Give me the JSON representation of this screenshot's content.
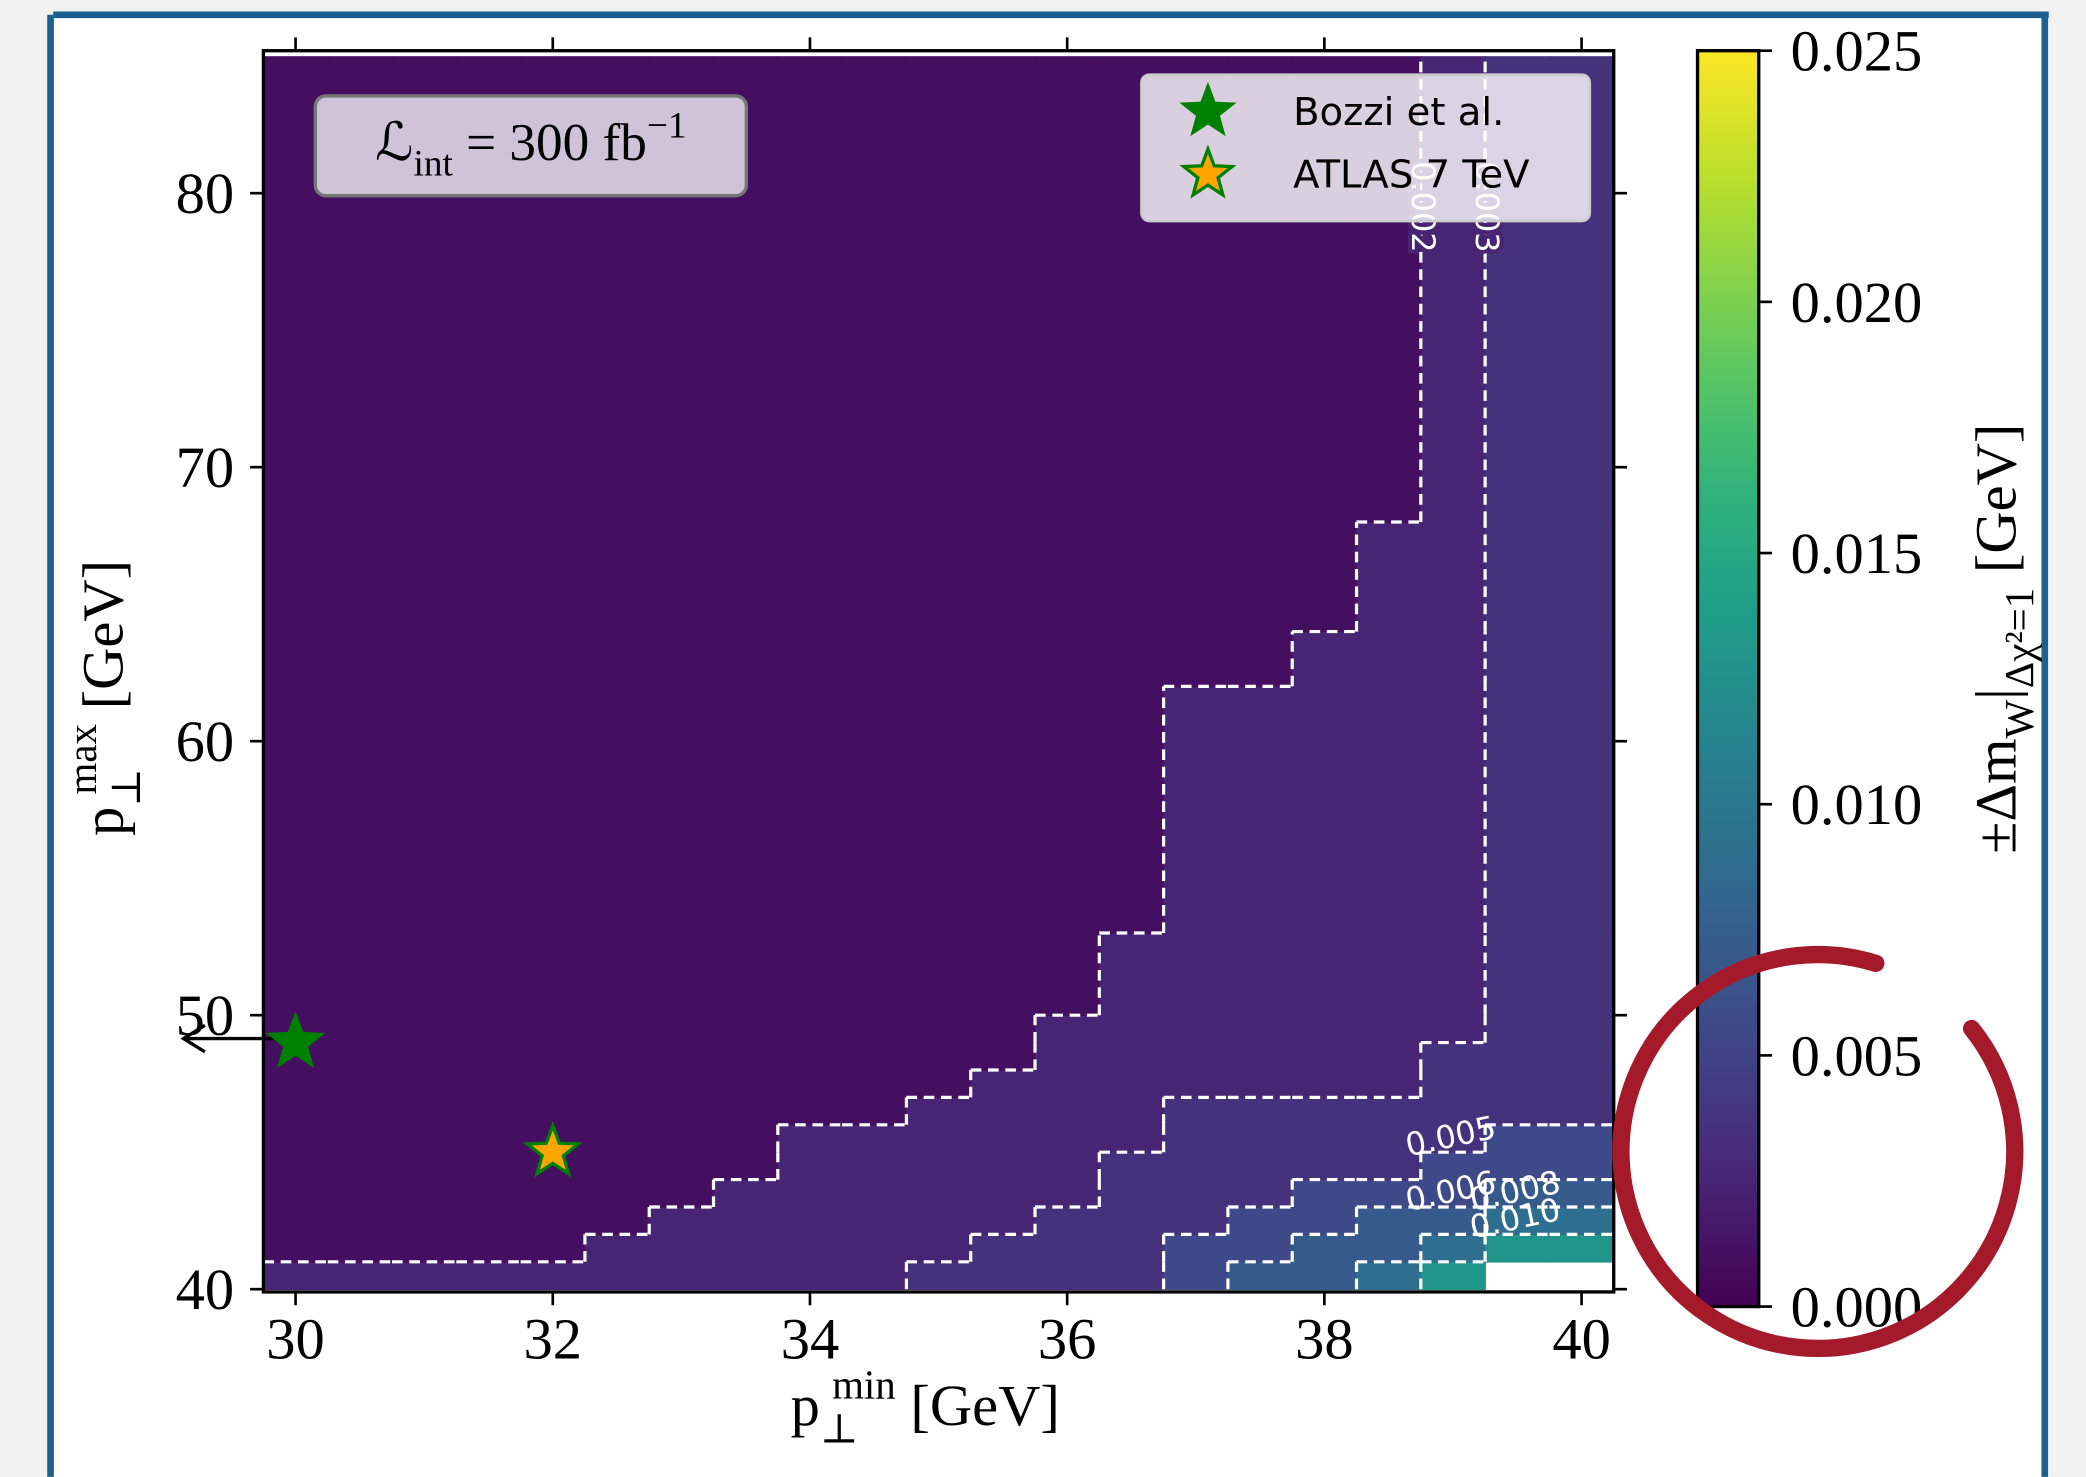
{
  "chart_data": {
    "type": "heatmap",
    "colormap": "viridis",
    "xlabel": [
      {
        "text": "p"
      },
      {
        "sub": "⊥"
      },
      {
        "sup": "min"
      },
      {
        "text": " [GeV]"
      }
    ],
    "ylabel": [
      {
        "text": "p"
      },
      {
        "sub": "⊥"
      },
      {
        "sup": "max"
      },
      {
        "text": " [GeV]"
      }
    ],
    "xlim": [
      29.75,
      40.25
    ],
    "ylim": [
      39.9,
      85.2
    ],
    "xticks": [
      30,
      32,
      34,
      36,
      38,
      40
    ],
    "yticks": [
      40,
      50,
      60,
      70,
      80
    ],
    "xbins": [
      29.75,
      30.25,
      30.75,
      31.25,
      31.75,
      32.25,
      32.75,
      33.25,
      33.75,
      34.25,
      34.75,
      35.25,
      35.75,
      36.25,
      36.75,
      37.25,
      37.75,
      38.25,
      38.75,
      39.25,
      39.75,
      40.25
    ],
    "ybins": [
      40,
      41,
      42,
      43,
      44,
      45,
      46,
      47,
      48,
      49,
      50,
      53,
      62,
      64,
      68,
      85
    ],
    "z": [
      [
        0.0025,
        0.0025,
        0.0025,
        0.0025,
        0.0025,
        0.0025,
        0.0025,
        0.0025,
        0.0025,
        0.0025,
        0.0035,
        0.0035,
        0.0035,
        0.0035,
        0.0055,
        0.007,
        0.007,
        0.009,
        0.013,
        null,
        null
      ],
      [
        0.001,
        0.001,
        0.001,
        0.001,
        0.001,
        0.0025,
        0.0025,
        0.0025,
        0.0025,
        0.0025,
        0.0025,
        0.0035,
        0.0035,
        0.0035,
        0.0055,
        0.0055,
        0.007,
        0.007,
        0.009,
        0.013,
        0.013
      ],
      [
        0.001,
        0.001,
        0.001,
        0.001,
        0.001,
        0.001,
        0.0025,
        0.0025,
        0.0025,
        0.0025,
        0.0025,
        0.0025,
        0.0035,
        0.0035,
        0.0035,
        0.0055,
        0.0055,
        0.007,
        0.007,
        0.009,
        0.009
      ],
      [
        0.001,
        0.001,
        0.001,
        0.001,
        0.001,
        0.001,
        0.001,
        0.0025,
        0.0025,
        0.0025,
        0.0025,
        0.0025,
        0.0025,
        0.0035,
        0.0035,
        0.0035,
        0.0055,
        0.0055,
        0.0055,
        0.007,
        0.007
      ],
      [
        0.001,
        0.001,
        0.001,
        0.001,
        0.001,
        0.001,
        0.001,
        0.001,
        0.0025,
        0.0025,
        0.0025,
        0.0025,
        0.0025,
        0.0035,
        0.0035,
        0.0035,
        0.0035,
        0.0035,
        0.0055,
        0.0055,
        0.0055
      ],
      [
        0.001,
        0.001,
        0.001,
        0.001,
        0.001,
        0.001,
        0.001,
        0.001,
        0.0025,
        0.0025,
        0.0025,
        0.0025,
        0.0025,
        0.0025,
        0.0035,
        0.0035,
        0.0035,
        0.0035,
        0.0035,
        0.0055,
        0.0055
      ],
      [
        0.001,
        0.001,
        0.001,
        0.001,
        0.001,
        0.001,
        0.001,
        0.001,
        0.001,
        0.001,
        0.0025,
        0.0025,
        0.0025,
        0.0025,
        0.0035,
        0.0035,
        0.0035,
        0.0035,
        0.0035,
        0.0035,
        0.0035
      ],
      [
        0.001,
        0.001,
        0.001,
        0.001,
        0.001,
        0.001,
        0.001,
        0.001,
        0.001,
        0.001,
        0.001,
        0.0025,
        0.0025,
        0.0025,
        0.0025,
        0.0025,
        0.0025,
        0.0025,
        0.0035,
        0.0035,
        0.0035
      ],
      [
        0.001,
        0.001,
        0.001,
        0.001,
        0.001,
        0.001,
        0.001,
        0.001,
        0.001,
        0.001,
        0.001,
        0.001,
        0.0025,
        0.0025,
        0.0025,
        0.0025,
        0.0025,
        0.0025,
        0.0035,
        0.0035,
        0.0035
      ],
      [
        0.001,
        0.001,
        0.001,
        0.001,
        0.001,
        0.001,
        0.001,
        0.001,
        0.001,
        0.001,
        0.001,
        0.001,
        0.0025,
        0.0025,
        0.0025,
        0.0025,
        0.0025,
        0.0025,
        0.0025,
        0.0035,
        0.0035
      ],
      [
        0.001,
        0.001,
        0.001,
        0.001,
        0.001,
        0.001,
        0.001,
        0.001,
        0.001,
        0.001,
        0.001,
        0.001,
        0.001,
        0.0025,
        0.0025,
        0.0025,
        0.0025,
        0.0025,
        0.0025,
        0.0035,
        0.0035
      ],
      [
        0.001,
        0.001,
        0.001,
        0.001,
        0.001,
        0.001,
        0.001,
        0.001,
        0.001,
        0.001,
        0.001,
        0.001,
        0.001,
        0.001,
        0.0025,
        0.0025,
        0.0025,
        0.0025,
        0.0025,
        0.0035,
        0.0035
      ],
      [
        0.001,
        0.001,
        0.001,
        0.001,
        0.001,
        0.001,
        0.001,
        0.001,
        0.001,
        0.001,
        0.001,
        0.001,
        0.001,
        0.001,
        0.001,
        0.001,
        0.0025,
        0.0025,
        0.0025,
        0.0035,
        0.0035
      ],
      [
        0.001,
        0.001,
        0.001,
        0.001,
        0.001,
        0.001,
        0.001,
        0.001,
        0.001,
        0.001,
        0.001,
        0.001,
        0.001,
        0.001,
        0.001,
        0.001,
        0.001,
        0.0025,
        0.0025,
        0.0035,
        0.0035
      ],
      [
        0.001,
        0.001,
        0.001,
        0.001,
        0.001,
        0.001,
        0.001,
        0.001,
        0.001,
        0.001,
        0.001,
        0.001,
        0.001,
        0.001,
        0.001,
        0.001,
        0.001,
        0.001,
        0.0025,
        0.0035,
        0.0035
      ]
    ],
    "contour_levels": [
      0.002,
      0.003,
      0.005,
      0.006,
      0.008,
      {
        "value": 0.01,
        "label": "0.010"
      }
    ],
    "contour_color": "#ffffff",
    "clim": [
      0,
      0.025
    ],
    "cticks": [
      {
        "value": 0,
        "label": "0.000"
      },
      {
        "value": 0.005,
        "label": "0.005"
      },
      {
        "value": 0.01,
        "label": "0.010"
      },
      {
        "value": 0.015,
        "label": "0.015"
      },
      {
        "value": 0.02,
        "label": "0.020"
      },
      {
        "value": 0.025,
        "label": "0.025"
      }
    ],
    "clabel": [
      {
        "text": "±Δm"
      },
      {
        "sub": "W"
      },
      {
        "text": "|"
      },
      {
        "sub": "Δχ²=1"
      },
      {
        "text": " [GeV]"
      }
    ],
    "points": [
      {
        "name": "Bozzi et al.",
        "x": 30,
        "y": 49,
        "color": "#008000",
        "edgecolor": "#008000"
      },
      {
        "name": "ATLAS 7 TeV",
        "x": 32,
        "y": 45,
        "color": "#ffa500",
        "edgecolor": "#008000"
      }
    ],
    "legend": "upper right",
    "annotation": [
      {
        "text": "ℒ"
      },
      {
        "sub": "int"
      },
      {
        "text": " = 300 fb"
      },
      {
        "sup": "−1"
      }
    ]
  }
}
